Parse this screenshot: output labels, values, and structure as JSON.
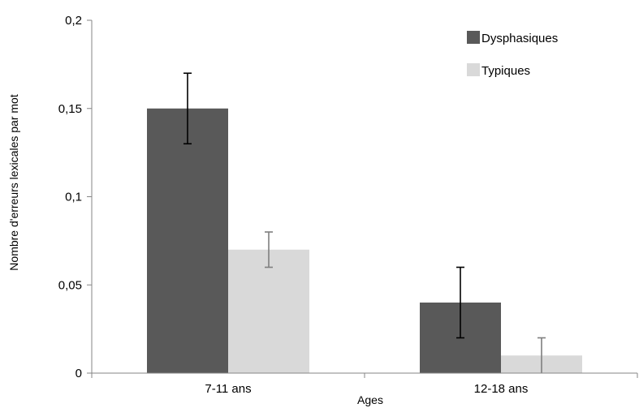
{
  "chart_data": {
    "type": "bar",
    "title": "",
    "xlabel": "Ages",
    "ylabel": "Nombre d'erreurs lexicales par mot",
    "categories": [
      "7-11 ans",
      "12-18 ans"
    ],
    "ylim": [
      0,
      0.2
    ],
    "yticks": [
      0,
      0.05,
      0.1,
      0.15,
      0.2
    ],
    "ytick_labels": [
      "0",
      "0,05",
      "0,1",
      "0,15",
      "0,2"
    ],
    "grid": false,
    "legend_position": "top-right",
    "series": [
      {
        "name": "Dysphasiques",
        "color": "#595959",
        "error_color": "#000000",
        "values": [
          0.15,
          0.04
        ],
        "error_low": [
          0.13,
          0.02
        ],
        "error_high": [
          0.17,
          0.06
        ]
      },
      {
        "name": "Typiques",
        "color": "#d9d9d9",
        "error_color": "#7f7f7f",
        "values": [
          0.07,
          0.01
        ],
        "error_low": [
          0.06,
          0.0
        ],
        "error_high": [
          0.08,
          0.02
        ]
      }
    ]
  }
}
